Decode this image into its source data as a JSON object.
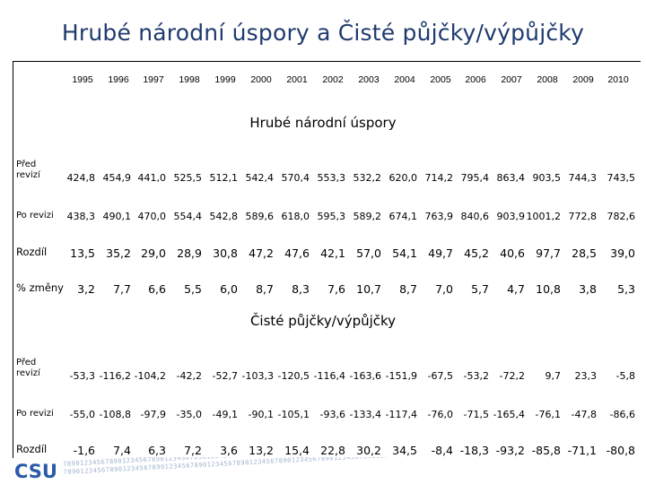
{
  "title": "Hrubé národní úspory a Čisté půjčky/výpůjčky",
  "years": [
    "1995",
    "1996",
    "1997",
    "1998",
    "1999",
    "2000",
    "2001",
    "2002",
    "2003",
    "2004",
    "2005",
    "2006",
    "2007",
    "2008",
    "2009",
    "2010"
  ],
  "sections": [
    {
      "title": "Hrubé národní úspory",
      "rows": [
        {
          "label": "Před revizí",
          "values": [
            "424,8",
            "454,9",
            "441,0",
            "525,5",
            "512,1",
            "542,4",
            "570,4",
            "553,3",
            "532,2",
            "620,0",
            "714,2",
            "795,4",
            "863,4",
            "903,5",
            "744,3",
            "743,5"
          ]
        },
        {
          "label": "Po revizi",
          "values": [
            "438,3",
            "490,1",
            "470,0",
            "554,4",
            "542,8",
            "589,6",
            "618,0",
            "595,3",
            "589,2",
            "674,1",
            "763,9",
            "840,6",
            "903,9",
            "1001,2",
            "772,8",
            "782,6"
          ]
        },
        {
          "label": "Rozdíl",
          "values": [
            "13,5",
            "35,2",
            "29,0",
            "28,9",
            "30,8",
            "47,2",
            "47,6",
            "42,1",
            "57,0",
            "54,1",
            "49,7",
            "45,2",
            "40,6",
            "97,7",
            "28,5",
            "39,0"
          ]
        },
        {
          "label": "% změny",
          "values": [
            "3,2",
            "7,7",
            "6,6",
            "5,5",
            "6,0",
            "8,7",
            "8,3",
            "7,6",
            "10,7",
            "8,7",
            "7,0",
            "5,7",
            "4,7",
            "10,8",
            "3,8",
            "5,3"
          ]
        }
      ]
    },
    {
      "title": "Čisté půjčky/výpůjčky",
      "rows": [
        {
          "label": "Před revizí",
          "values": [
            "-53,3",
            "-116,2",
            "-104,2",
            "-42,2",
            "-52,7",
            "-103,3",
            "-120,5",
            "-116,4",
            "-163,6",
            "-151,9",
            "-67,5",
            "-53,2",
            "-72,2",
            "9,7",
            "23,3",
            "-5,8"
          ]
        },
        {
          "label": "Po revizi",
          "values": [
            "-55,0",
            "-108,8",
            "-97,9",
            "-35,0",
            "-49,1",
            "-90,1",
            "-105,1",
            "-93,6",
            "-133,4",
            "-117,4",
            "-76,0",
            "-71,5",
            "-165,4",
            "-76,1",
            "-47,8",
            "-86,6"
          ]
        },
        {
          "label": "Rozdíl",
          "values": [
            "-1,6",
            "7,4",
            "6,3",
            "7,2",
            "3,6",
            "13,2",
            "15,4",
            "22,8",
            "30,2",
            "34,5",
            "-8,4",
            "-18,3",
            "-93,2",
            "-85,8",
            "-71,1",
            "-80,8"
          ]
        }
      ]
    }
  ],
  "footer": {
    "logo_text": "CSU",
    "digits": "78901234567890123456789012345678901234567890123456789012345678901234567890123456789012345678901234567890123456789012345678901234567890"
  },
  "colors": {
    "title": "#1f3a6e",
    "logo": "#2b5aa8",
    "digits": "#9fb3cf"
  }
}
